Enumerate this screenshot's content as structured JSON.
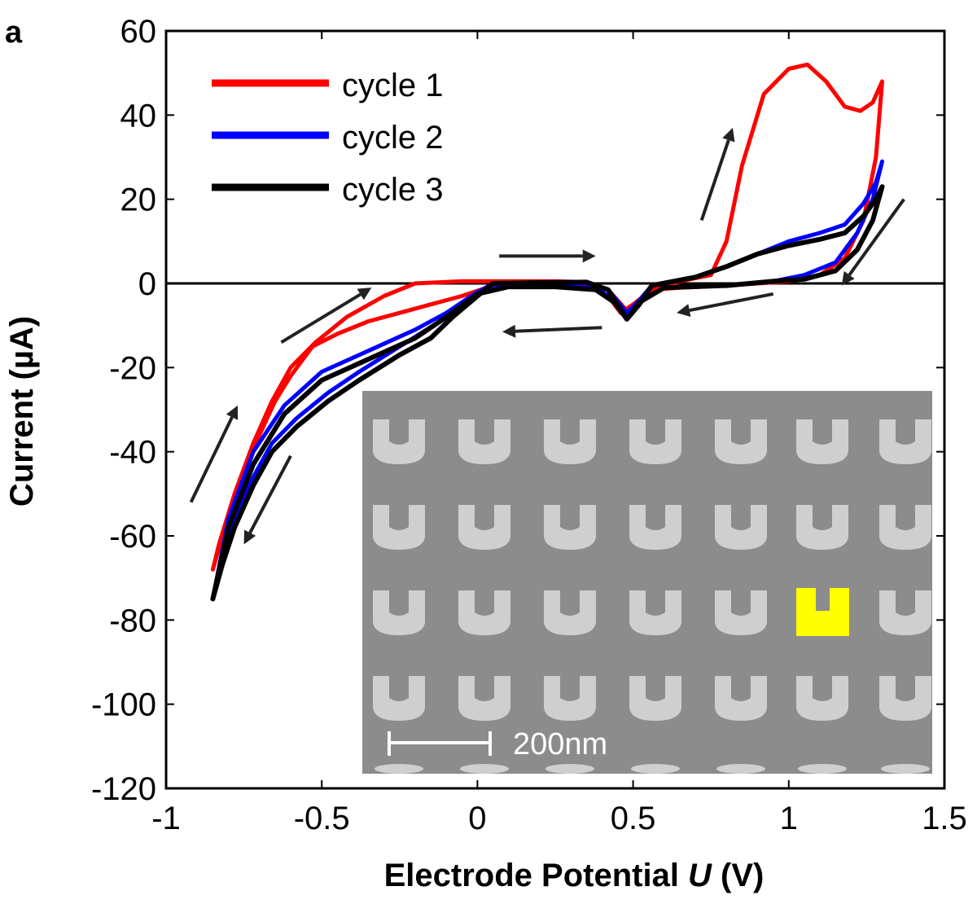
{
  "panel_label": "a",
  "colors": {
    "cycle1": "#ff0000",
    "cycle2": "#0000ff",
    "cycle3": "#000000",
    "inset_background": "#8c8c8c",
    "inset_particle": "#cfcfcf",
    "highlight": "#ffff00",
    "arrow": "#222222"
  },
  "inset": {
    "description_icon": "sem-image-u-shaped-nanostructures",
    "scale_bar_label": "200nm"
  },
  "chart_data": {
    "type": "line",
    "title": "",
    "xlabel_prefix": "Electrode Potential ",
    "xlabel_var": "U",
    "xlabel_suffix": " (V)",
    "ylabel": "Current (µA)",
    "xlim": [
      -1,
      1.5
    ],
    "ylim": [
      -120,
      60
    ],
    "xticks": [
      -1,
      -0.5,
      0,
      0.5,
      1,
      1.5
    ],
    "xtick_labels": [
      "-1",
      "-0.5",
      "0",
      "0.5",
      "1",
      "1.5"
    ],
    "yticks": [
      60,
      40,
      20,
      0,
      -20,
      -40,
      -60,
      -80,
      -100,
      -120
    ],
    "ytick_labels": [
      "60",
      "40",
      "20",
      "0",
      "-20",
      "-40",
      "-60",
      "-80",
      "-100",
      "-120"
    ],
    "zero_line": true,
    "grid": false,
    "legend_position": "top-left",
    "series": [
      {
        "name": "cycle 1",
        "color_key": "cycle1",
        "points": [
          [
            -0.6,
            -22
          ],
          [
            -0.65,
            -28
          ],
          [
            -0.7,
            -36
          ],
          [
            -0.75,
            -45
          ],
          [
            -0.8,
            -55
          ],
          [
            -0.85,
            -68
          ],
          [
            -0.83,
            -62
          ],
          [
            -0.78,
            -50
          ],
          [
            -0.72,
            -38
          ],
          [
            -0.66,
            -28
          ],
          [
            -0.6,
            -20
          ],
          [
            -0.52,
            -14
          ],
          [
            -0.42,
            -8
          ],
          [
            -0.3,
            -3
          ],
          [
            -0.2,
            0
          ],
          [
            -0.05,
            0.5
          ],
          [
            0.1,
            0.5
          ],
          [
            0.25,
            0.5
          ],
          [
            0.35,
            0.3
          ],
          [
            0.42,
            -1.5
          ],
          [
            0.48,
            -6.5
          ],
          [
            0.52,
            -4
          ],
          [
            0.56,
            -1
          ],
          [
            0.65,
            0.5
          ],
          [
            0.75,
            2
          ],
          [
            0.8,
            10
          ],
          [
            0.85,
            28
          ],
          [
            0.92,
            45
          ],
          [
            1.0,
            51
          ],
          [
            1.06,
            52
          ],
          [
            1.12,
            48
          ],
          [
            1.18,
            42
          ],
          [
            1.23,
            41
          ],
          [
            1.27,
            43
          ],
          [
            1.3,
            48
          ],
          [
            1.28,
            30
          ],
          [
            1.24,
            15
          ],
          [
            1.18,
            6
          ],
          [
            1.1,
            2
          ],
          [
            1.0,
            0.5
          ],
          [
            0.8,
            -0.5
          ],
          [
            0.65,
            -1
          ],
          [
            0.56,
            -1.5
          ],
          [
            0.5,
            -5
          ],
          [
            0.46,
            -7
          ],
          [
            0.42,
            -3
          ],
          [
            0.35,
            -0.5
          ],
          [
            0.2,
            0
          ],
          [
            0.05,
            -0.5
          ],
          [
            -0.05,
            -3
          ],
          [
            -0.15,
            -5
          ],
          [
            -0.25,
            -7
          ],
          [
            -0.35,
            -9
          ],
          [
            -0.45,
            -12
          ],
          [
            -0.53,
            -15
          ],
          [
            -0.6,
            -22
          ]
        ]
      },
      {
        "name": "cycle 2",
        "color_key": "cycle2",
        "points": [
          [
            -0.85,
            -75
          ],
          [
            -0.82,
            -67
          ],
          [
            -0.78,
            -56
          ],
          [
            -0.72,
            -46
          ],
          [
            -0.66,
            -38
          ],
          [
            -0.58,
            -32
          ],
          [
            -0.48,
            -26
          ],
          [
            -0.38,
            -21
          ],
          [
            -0.25,
            -15
          ],
          [
            -0.12,
            -9
          ],
          [
            -0.02,
            -3
          ],
          [
            0.05,
            0
          ],
          [
            0.2,
            0.3
          ],
          [
            0.35,
            0.4
          ],
          [
            0.42,
            -1.5
          ],
          [
            0.48,
            -7
          ],
          [
            0.52,
            -4
          ],
          [
            0.56,
            -0.5
          ],
          [
            0.7,
            1.5
          ],
          [
            0.8,
            4
          ],
          [
            0.9,
            7
          ],
          [
            1.0,
            10
          ],
          [
            1.1,
            12
          ],
          [
            1.18,
            14
          ],
          [
            1.24,
            19
          ],
          [
            1.28,
            24
          ],
          [
            1.3,
            29
          ],
          [
            1.27,
            20
          ],
          [
            1.22,
            12
          ],
          [
            1.15,
            5
          ],
          [
            1.05,
            2
          ],
          [
            0.95,
            0.5
          ],
          [
            0.8,
            -0.5
          ],
          [
            0.6,
            -1
          ],
          [
            0.52,
            -4
          ],
          [
            0.48,
            -7.5
          ],
          [
            0.44,
            -4
          ],
          [
            0.38,
            -1
          ],
          [
            0.25,
            -0.5
          ],
          [
            0.1,
            -0.5
          ],
          [
            0.0,
            -2
          ],
          [
            -0.1,
            -7
          ],
          [
            -0.2,
            -11
          ],
          [
            -0.35,
            -16
          ],
          [
            -0.5,
            -21
          ],
          [
            -0.62,
            -29
          ],
          [
            -0.72,
            -40
          ],
          [
            -0.8,
            -56
          ],
          [
            -0.85,
            -75
          ]
        ]
      },
      {
        "name": "cycle 3",
        "color_key": "cycle3",
        "points": [
          [
            -0.85,
            -75
          ],
          [
            -0.82,
            -67
          ],
          [
            -0.78,
            -58
          ],
          [
            -0.72,
            -48
          ],
          [
            -0.66,
            -40
          ],
          [
            -0.58,
            -34
          ],
          [
            -0.48,
            -28
          ],
          [
            -0.38,
            -23
          ],
          [
            -0.25,
            -17
          ],
          [
            -0.15,
            -13
          ],
          [
            -0.08,
            -8
          ],
          [
            0.0,
            -3
          ],
          [
            0.05,
            0
          ],
          [
            0.2,
            0.2
          ],
          [
            0.35,
            0.3
          ],
          [
            0.42,
            -1.5
          ],
          [
            0.48,
            -8.5
          ],
          [
            0.52,
            -5
          ],
          [
            0.56,
            -0.5
          ],
          [
            0.7,
            1.5
          ],
          [
            0.8,
            4
          ],
          [
            0.9,
            7
          ],
          [
            1.0,
            9
          ],
          [
            1.1,
            10.5
          ],
          [
            1.18,
            12
          ],
          [
            1.24,
            16
          ],
          [
            1.28,
            20
          ],
          [
            1.3,
            23
          ],
          [
            1.27,
            15
          ],
          [
            1.22,
            8
          ],
          [
            1.15,
            3
          ],
          [
            1.05,
            1
          ],
          [
            0.95,
            0.5
          ],
          [
            0.8,
            -0.5
          ],
          [
            0.6,
            -1
          ],
          [
            0.52,
            -4.5
          ],
          [
            0.48,
            -8.5
          ],
          [
            0.44,
            -4.5
          ],
          [
            0.38,
            -1.5
          ],
          [
            0.25,
            -0.8
          ],
          [
            0.1,
            -0.8
          ],
          [
            0.0,
            -2.5
          ],
          [
            -0.1,
            -8
          ],
          [
            -0.2,
            -13
          ],
          [
            -0.35,
            -18
          ],
          [
            -0.5,
            -23
          ],
          [
            -0.62,
            -31
          ],
          [
            -0.72,
            -43
          ],
          [
            -0.8,
            -58
          ],
          [
            -0.85,
            -75
          ]
        ]
      }
    ],
    "arrows": [
      [
        0.07,
        6.5,
        0.38,
        6.5
      ],
      [
        0.4,
        -10.5,
        0.08,
        -11.5
      ],
      [
        0.95,
        -2.5,
        0.64,
        -7
      ],
      [
        1.37,
        20,
        1.17,
        -0.5
      ],
      [
        0.72,
        15,
        0.82,
        37
      ],
      [
        -0.63,
        -14,
        -0.34,
        -1
      ],
      [
        -0.92,
        -52,
        -0.77,
        -29
      ],
      [
        -0.6,
        -41,
        -0.75,
        -62
      ]
    ]
  }
}
